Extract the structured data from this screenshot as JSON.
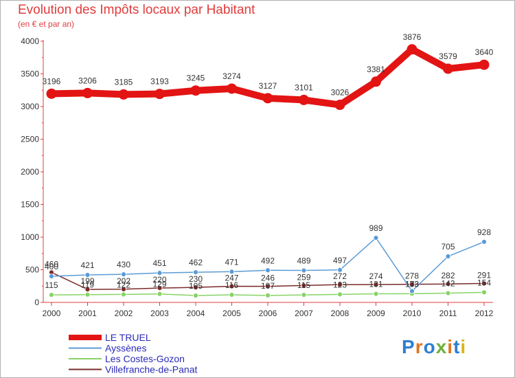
{
  "header": {
    "title": "Evolution des Impôts locaux par Habitant",
    "subtitle": "(en € et par an)"
  },
  "logo": {
    "text": "Proxiti"
  },
  "chart_data": {
    "type": "line",
    "x": [
      "2000",
      "2001",
      "2002",
      "2003",
      "2004",
      "2005",
      "2006",
      "2007",
      "2008",
      "2009",
      "2010",
      "2011",
      "2012"
    ],
    "y_ticks": [
      "0",
      "500",
      "1000",
      "1500",
      "2000",
      "2500",
      "3000",
      "3500",
      "4000"
    ],
    "ylim": [
      0,
      4000
    ],
    "grid": false,
    "legend_position": "bottom-left",
    "series": [
      {
        "name": "LE TRUEL",
        "color": "#e31414",
        "values": [
          3196,
          3206,
          3185,
          3193,
          3245,
          3274,
          3127,
          3101,
          3026,
          3381,
          3876,
          3579,
          3640
        ],
        "labels": [
          "3196",
          "3206",
          "3185",
          "3193",
          "3245",
          "3274",
          "3127",
          "3101",
          "3026",
          "3381",
          "3876",
          "3579",
          "3640"
        ]
      },
      {
        "name": "Ayssènes",
        "color": "#5b9bd5",
        "values": [
          400,
          421,
          430,
          451,
          462,
          471,
          492,
          489,
          497,
          989,
          173,
          705,
          928
        ],
        "labels": [
          "400",
          "421",
          "430",
          "451",
          "462",
          "471",
          "492",
          "489",
          "497",
          "989",
          "173",
          "705",
          "928"
        ]
      },
      {
        "name": "Les Costes-Gozon",
        "color": "#86d366",
        "values": [
          115,
          119,
          122,
          129,
          105,
          116,
          107,
          115,
          123,
          131,
          133,
          142,
          154
        ],
        "labels": [
          "115",
          "119",
          "122",
          "129",
          "105",
          "116",
          "107",
          "115",
          "123",
          "131",
          "133",
          "142",
          "154"
        ]
      },
      {
        "name": "Villefranche-de-Panat",
        "color": "#7b2a2a",
        "values": [
          460,
          199,
          202,
          220,
          230,
          247,
          246,
          259,
          272,
          274,
          278,
          282,
          291
        ],
        "labels": [
          "460",
          "199",
          "202",
          "220",
          "230",
          "247",
          "246",
          "259",
          "272",
          "274",
          "278",
          "282",
          "291"
        ]
      }
    ]
  }
}
